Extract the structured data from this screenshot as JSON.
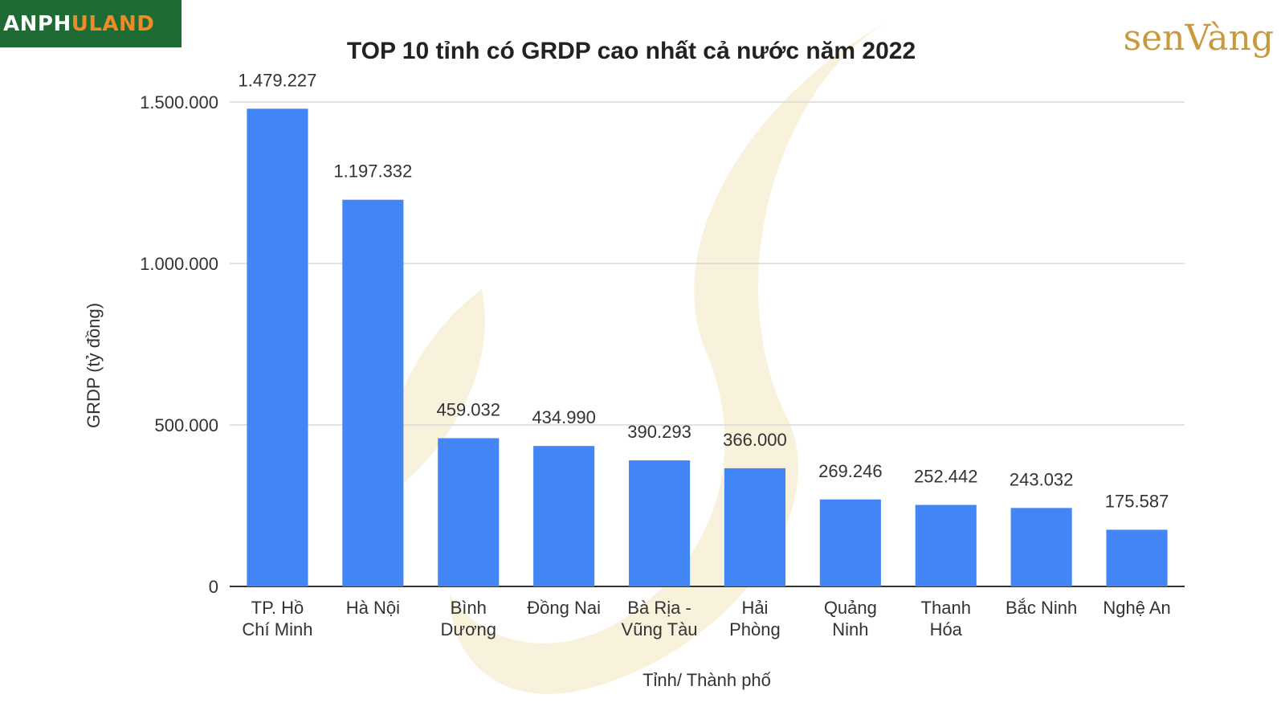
{
  "logos": {
    "left": {
      "part1": "ANPH",
      "part2": "U",
      "part3": "LAND"
    },
    "right": {
      "text": "senVàng"
    }
  },
  "colors": {
    "bar": "#4285f4",
    "grid": "#d9d9d9",
    "watermark": "#f3e6c0",
    "logo_bg": "#1e6b34"
  },
  "chart_data": {
    "type": "bar",
    "title": "TOP 10 tỉnh có GRDP cao nhất cả nước năm 2022",
    "xlabel": "Tỉnh/ Thành phố",
    "ylabel": "GRDP (tỷ đồng)",
    "ylim": [
      0,
      1500000
    ],
    "yticks": [
      {
        "value": 0,
        "label": "0"
      },
      {
        "value": 500000,
        "label": "500.000"
      },
      {
        "value": 1000000,
        "label": "1.000.000"
      },
      {
        "value": 1500000,
        "label": "1.500.000"
      }
    ],
    "grid": true,
    "categories": [
      [
        "TP. Hồ",
        "Chí Minh"
      ],
      [
        "Hà Nội"
      ],
      [
        "Bình",
        "Dương"
      ],
      [
        "Đồng Nai"
      ],
      [
        "Bà Rịa -",
        "Vũng Tàu"
      ],
      [
        "Hải",
        "Phòng"
      ],
      [
        "Quảng",
        "Ninh"
      ],
      [
        "Thanh",
        "Hóa"
      ],
      [
        "Bắc Ninh"
      ],
      [
        "Nghệ An"
      ]
    ],
    "values": [
      1479227,
      1197332,
      459032,
      434990,
      390293,
      366000,
      269246,
      252442,
      243032,
      175587
    ],
    "data_labels": [
      "1.479.227",
      "1.197.332",
      "459.032",
      "434.990",
      "390.293",
      "366.000",
      "269.246",
      "252.442",
      "243.032",
      "175.587"
    ]
  }
}
